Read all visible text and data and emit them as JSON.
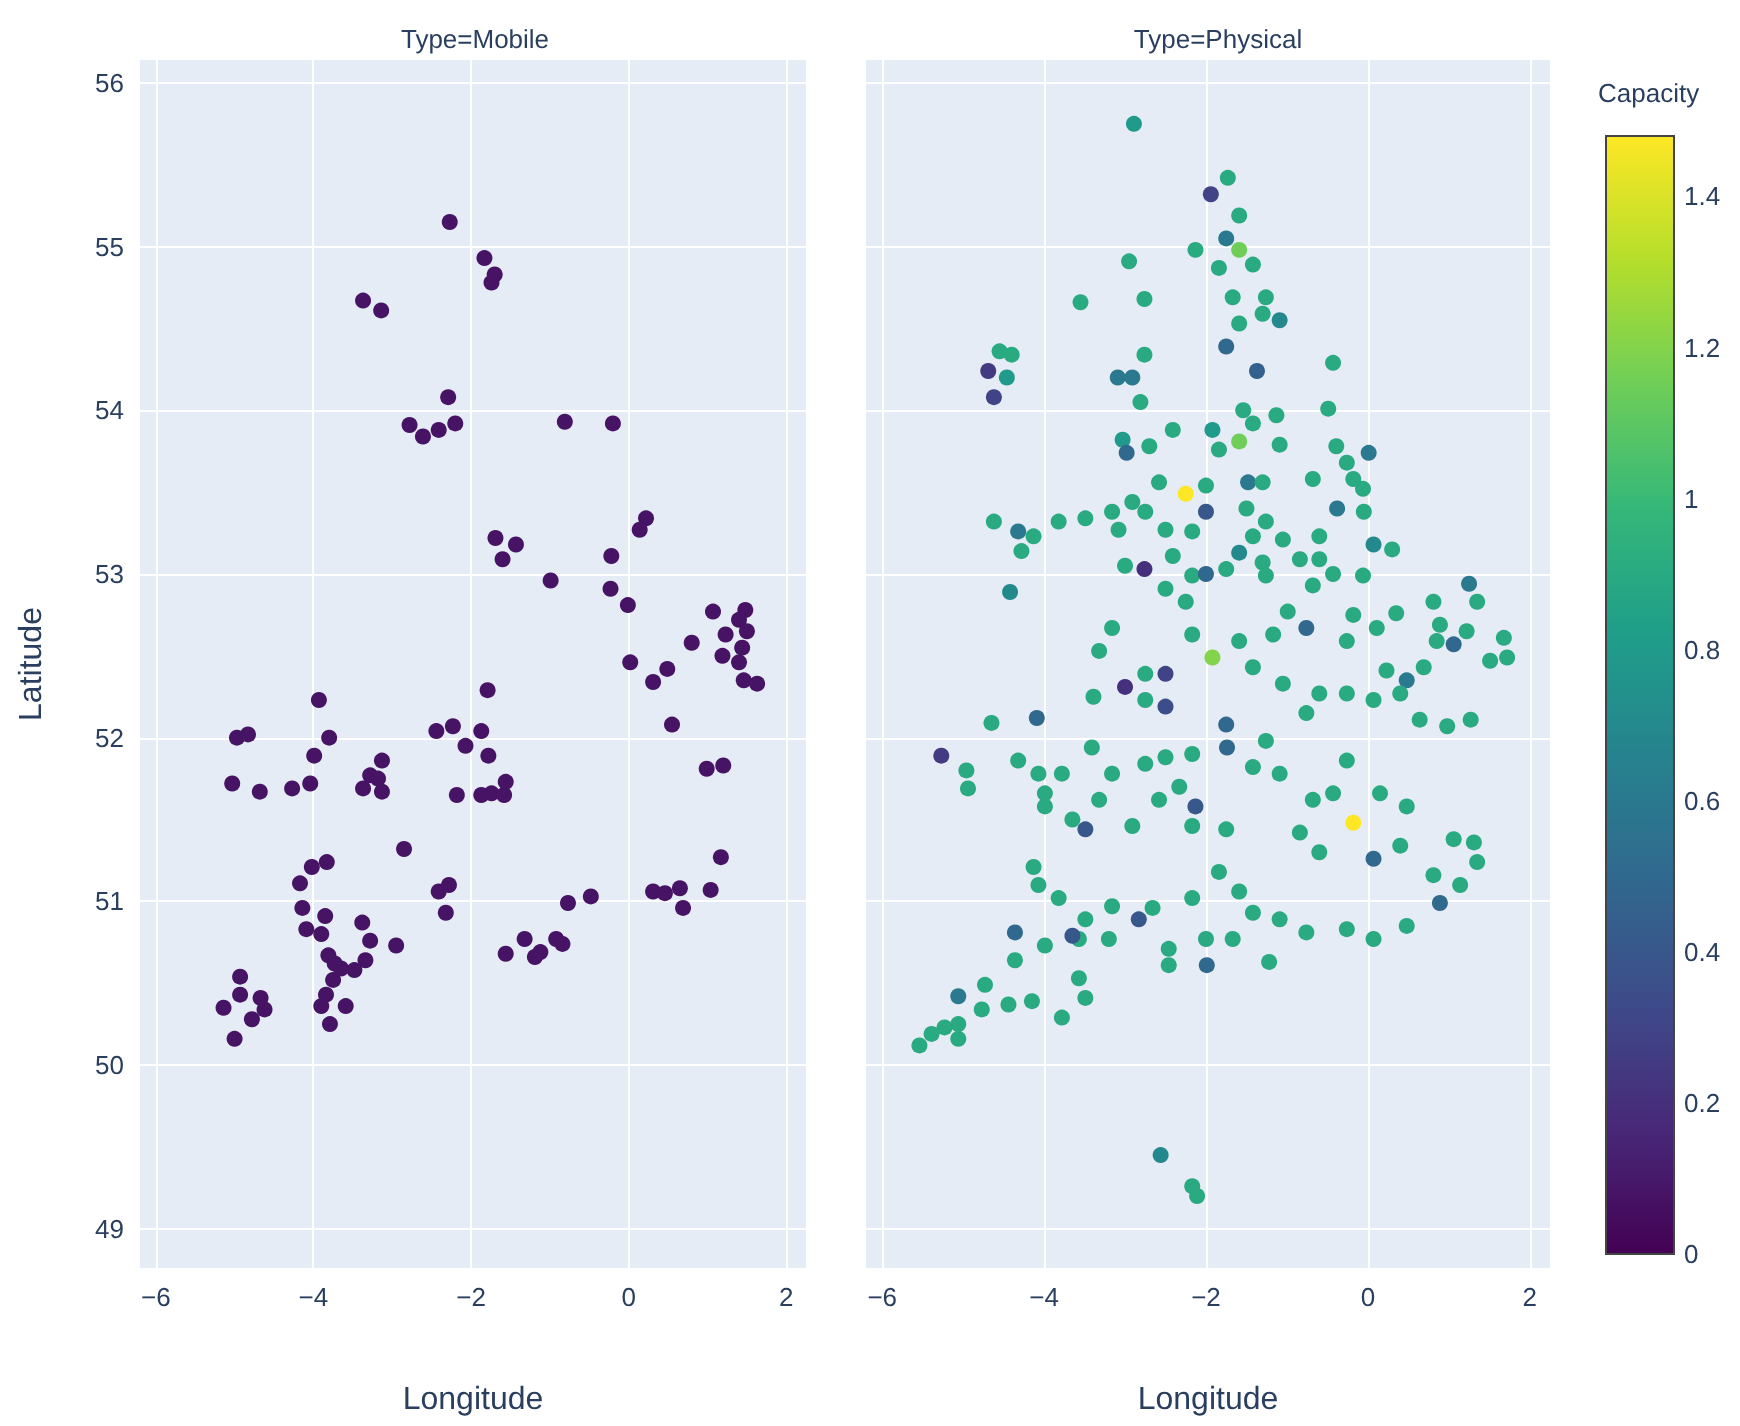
{
  "chart_data": [
    {
      "type": "scatter",
      "title": "Type=Mobile",
      "xlabel": "Longitude",
      "ylabel": "Latitude",
      "marker": "circle",
      "grid": true,
      "xlim": [
        -6.2,
        2.25
      ],
      "ylim": [
        48.76,
        56.14
      ],
      "xticks": [
        -6,
        -4,
        -2,
        0,
        2
      ],
      "yticks": [
        49,
        50,
        51,
        52,
        53,
        54,
        55,
        56
      ],
      "x": [
        -2.27,
        -1.83,
        -1.7,
        -1.74,
        -3.37,
        -3.14,
        -2.29,
        -2.78,
        -2.61,
        -2.41,
        -2.2,
        -0.81,
        -0.2,
        -1.69,
        -1.43,
        -1.6,
        -0.99,
        -0.22,
        -0.23,
        -0.01,
        0.22,
        0.14,
        1.07,
        1.48,
        1.23,
        1.4,
        1.5,
        0.8,
        1.19,
        1.4,
        1.44,
        0.02,
        0.49,
        0.31,
        1.46,
        1.63,
        0.55,
        -1.79,
        -3.93,
        -4.97,
        -4.83,
        -5.03,
        -4.68,
        -4.27,
        -4.04,
        -3.99,
        -3.8,
        -3.37,
        -3.28,
        -3.13,
        -3.13,
        -3.18,
        -2.85,
        -2.44,
        -2.23,
        -1.87,
        -2.07,
        -1.78,
        -2.18,
        -1.87,
        -1.74,
        -1.56,
        -1.58,
        0.99,
        1.2,
        1.17,
        1.04,
        0.31,
        0.46,
        0.65,
        0.69,
        -0.48,
        -0.77,
        -0.84,
        -0.92,
        -1.12,
        -1.19,
        -1.32,
        -1.56,
        -2.41,
        -2.28,
        -2.32,
        -4.02,
        -3.83,
        -4.17,
        -4.14,
        -3.85,
        -4.09,
        -3.9,
        -3.38,
        -3.28,
        -2.95,
        -3.81,
        -3.73,
        -3.65,
        -3.34,
        -3.48,
        -3.75,
        -3.84,
        -3.9,
        -3.59,
        -3.79,
        -4.93,
        -4.93,
        -5.14,
        -4.78,
        -4.67,
        -4.62,
        -5.0
      ],
      "values": [
        55.15,
        54.93,
        54.83,
        54.78,
        54.67,
        54.61,
        54.08,
        53.91,
        53.84,
        53.88,
        53.92,
        53.93,
        53.92,
        53.22,
        53.18,
        53.09,
        52.96,
        53.11,
        52.91,
        52.81,
        53.34,
        53.27,
        52.77,
        52.78,
        52.63,
        52.72,
        52.65,
        52.58,
        52.5,
        52.46,
        52.55,
        52.46,
        52.42,
        52.34,
        52.35,
        52.33,
        52.08,
        52.29,
        52.23,
        52.0,
        52.02,
        51.72,
        51.67,
        51.69,
        51.72,
        51.89,
        52.0,
        51.69,
        51.77,
        51.86,
        51.67,
        51.75,
        51.32,
        52.04,
        52.07,
        52.04,
        51.95,
        51.89,
        51.65,
        51.65,
        51.66,
        51.73,
        51.65,
        51.81,
        51.83,
        51.27,
        51.07,
        51.06,
        51.05,
        51.08,
        50.96,
        51.03,
        50.99,
        50.74,
        50.77,
        50.69,
        50.66,
        50.77,
        50.68,
        51.06,
        51.1,
        50.93,
        51.21,
        51.24,
        51.11,
        50.96,
        50.91,
        50.83,
        50.8,
        50.87,
        50.76,
        50.73,
        50.67,
        50.62,
        50.59,
        50.64,
        50.58,
        50.52,
        50.43,
        50.36,
        50.36,
        50.25,
        50.54,
        50.43,
        50.35,
        50.28,
        50.41,
        50.34,
        50.16
      ],
      "color": "#471365"
    },
    {
      "type": "scatter",
      "title": "Type=Physical",
      "xlabel": "Longitude",
      "marker": "circle",
      "grid": true,
      "tick_labels": "x",
      "clabel": "Capacity",
      "clim": [
        0,
        1.48
      ],
      "cticks": [
        0,
        0.2,
        0.4,
        0.6,
        0.8,
        1,
        1.2,
        1.4
      ],
      "xlim": [
        -6.2,
        2.25
      ],
      "ylim": [
        48.76,
        56.14
      ],
      "xticks": [
        -6,
        -4,
        -2,
        0,
        2
      ],
      "yticks": [
        49,
        50,
        51,
        52,
        53,
        54,
        55,
        56
      ],
      "x": [
        -2.89,
        -1.73,
        -1.94,
        -1.59,
        -2.13,
        -1.59,
        -1.75,
        -1.42,
        -1.84,
        -1.67,
        -1.26,
        -1.09,
        -1.59,
        -1.3,
        -2.95,
        -2.76,
        -3.55,
        -2.76,
        -1.75,
        -1.37,
        -0.43,
        -4.55,
        -4.4,
        -4.69,
        -4.46,
        -4.62,
        -3.09,
        -2.91,
        -2.81,
        -0.49,
        -1.54,
        -1.13,
        -1.59,
        -1.84,
        -1.42,
        -1.09,
        -1.92,
        -2.41,
        -3.03,
        -2.7,
        -2.98,
        -0.39,
        0.01,
        -0.26,
        -2.25,
        -2.58,
        -2.0,
        -2.91,
        -3.16,
        -2.75,
        -2.0,
        -3.08,
        -2.5,
        -2.17,
        -3.82,
        -3.49,
        -4.62,
        -4.32,
        -4.13,
        -4.28,
        -4.42,
        -1.48,
        -1.3,
        -1.5,
        -1.26,
        -1.05,
        -1.42,
        -1.59,
        -1.3,
        -1.26,
        -0.6,
        -0.68,
        -0.18,
        -0.06,
        -0.38,
        -0.05,
        0.07,
        0.3,
        -0.6,
        -2.76,
        -3.0,
        -2.41,
        -2.17,
        -2.25,
        -2.5,
        -2.0,
        -1.75,
        -0.84,
        -0.43,
        -0.06,
        1.25,
        0.81,
        1.35,
        1.68,
        1.72,
        1.51,
        1.06,
        1.22,
        0.89,
        0.35,
        0.11,
        -0.18,
        -0.68,
        -0.99,
        -0.76,
        -0.26,
        0.23,
        0.69,
        0.48,
        -1.92,
        -2.17,
        -1.59,
        -1.17,
        -1.42,
        -2.75,
        -2.5,
        -3.16,
        -3.32,
        -3.0,
        -3.39,
        -2.75,
        -2.5,
        -4.65,
        -4.09,
        -5.27,
        -4.96,
        -4.94,
        -4.32,
        -4.07,
        -3.78,
        -3.99,
        -3.99,
        -3.41,
        -3.16,
        -3.32,
        -3.49,
        -3.65,
        -2.91,
        -2.58,
        -2.33,
        -2.17,
        -2.75,
        -2.5,
        -1.75,
        -1.74,
        -2.13,
        -2.17,
        -1.75,
        -1.42,
        -1.09,
        -1.26,
        -0.76,
        -1.05,
        -0.6,
        -0.26,
        0.07,
        0.4,
        0.64,
        0.98,
        1.27,
        0.85,
        -0.26,
        -0.18,
        -0.68,
        -0.43,
        0.15,
        0.48,
        -0.84,
        -0.6,
        0.07,
        0.4,
        0.81,
        1.06,
        1.31,
        1.35,
        1.14,
        0.89,
        0.48,
        0.07,
        -0.26,
        -0.76,
        -1.09,
        -1.42,
        -1.22,
        -1.67,
        -2.0,
        -1.99,
        -2.46,
        -2.46,
        -2.17,
        -1.59,
        -1.84,
        -2.66,
        -2.83,
        -3.2,
        -3.57,
        -3.65,
        -3.16,
        -3.49,
        -3.82,
        -4.07,
        -4.13,
        -4.36,
        -4.36,
        -3.99,
        -3.57,
        -3.49,
        -3.78,
        -4.15,
        -4.44,
        -4.77,
        -4.73,
        -5.06,
        -5.06,
        -5.23,
        -5.39,
        -5.54,
        -5.06,
        -2.56,
        -2.17,
        -2.11
      ],
      "values": [
        55.75,
        55.42,
        55.32,
        54.98,
        54.98,
        55.19,
        55.05,
        54.89,
        54.87,
        54.69,
        54.69,
        54.55,
        54.53,
        54.59,
        54.91,
        54.68,
        54.66,
        54.34,
        54.39,
        54.24,
        54.29,
        54.36,
        54.34,
        54.24,
        54.2,
        54.08,
        54.2,
        54.2,
        54.05,
        54.01,
        54.0,
        53.97,
        53.81,
        53.76,
        53.92,
        53.79,
        53.88,
        53.88,
        53.82,
        53.78,
        53.74,
        53.78,
        53.74,
        53.68,
        53.49,
        53.56,
        53.54,
        53.44,
        53.38,
        53.38,
        53.38,
        53.27,
        53.27,
        53.26,
        53.32,
        53.34,
        53.32,
        53.26,
        53.23,
        53.14,
        52.89,
        53.56,
        53.56,
        53.4,
        53.32,
        53.21,
        53.23,
        53.13,
        53.07,
        52.99,
        53.23,
        53.58,
        53.58,
        53.52,
        53.4,
        53.38,
        53.18,
        53.15,
        53.09,
        53.03,
        53.05,
        53.11,
        52.99,
        52.83,
        52.91,
        53.0,
        53.03,
        53.09,
        53.0,
        52.99,
        52.94,
        52.83,
        52.83,
        52.61,
        52.49,
        52.47,
        52.57,
        52.65,
        52.69,
        52.76,
        52.67,
        52.75,
        52.93,
        52.77,
        52.67,
        52.59,
        52.41,
        52.43,
        52.35,
        52.49,
        52.63,
        52.59,
        52.63,
        52.43,
        52.39,
        52.39,
        52.67,
        52.53,
        52.31,
        52.25,
        52.23,
        52.19,
        52.09,
        52.12,
        51.89,
        51.8,
        51.69,
        51.86,
        51.78,
        51.78,
        51.66,
        51.58,
        51.94,
        51.78,
        51.62,
        51.44,
        51.5,
        51.46,
        51.62,
        51.7,
        51.9,
        51.84,
        51.88,
        52.08,
        51.94,
        51.58,
        51.46,
        51.44,
        51.82,
        51.78,
        51.98,
        52.15,
        52.33,
        52.27,
        52.27,
        52.23,
        52.27,
        52.11,
        52.07,
        52.11,
        52.59,
        51.86,
        51.48,
        51.62,
        51.66,
        51.66,
        51.58,
        51.42,
        51.3,
        51.26,
        51.34,
        51.16,
        51.38,
        51.36,
        51.24,
        51.1,
        50.99,
        50.85,
        50.77,
        50.83,
        50.81,
        50.89,
        50.93,
        50.63,
        50.77,
        50.77,
        50.61,
        50.61,
        50.71,
        51.02,
        51.06,
        51.18,
        50.96,
        50.89,
        50.77,
        50.77,
        50.79,
        50.97,
        50.89,
        51.02,
        51.1,
        51.21,
        50.81,
        50.64,
        50.73,
        50.53,
        50.41,
        50.29,
        50.39,
        50.37,
        50.34,
        50.49,
        50.42,
        50.25,
        50.23,
        50.19,
        50.12,
        50.16,
        49.45,
        49.26,
        49.2
      ],
      "cvalues": [
        0.8,
        0.9,
        0.3,
        1.15,
        0.9,
        0.9,
        0.6,
        0.9,
        0.9,
        0.9,
        0.9,
        0.7,
        0.9,
        0.9,
        0.9,
        0.9,
        0.9,
        0.9,
        0.5,
        0.45,
        0.9,
        0.9,
        0.9,
        0.25,
        0.8,
        0.3,
        0.6,
        0.6,
        0.9,
        0.9,
        0.9,
        0.9,
        1.15,
        0.9,
        0.9,
        0.9,
        0.8,
        0.9,
        0.8,
        0.9,
        0.5,
        0.9,
        0.6,
        0.9,
        1.48,
        0.9,
        0.9,
        0.9,
        0.9,
        0.9,
        0.4,
        0.9,
        0.9,
        0.9,
        0.9,
        0.9,
        0.9,
        0.6,
        0.9,
        0.9,
        0.7,
        0.6,
        0.9,
        0.9,
        0.9,
        0.9,
        0.9,
        0.7,
        0.9,
        0.9,
        0.9,
        0.9,
        0.9,
        0.9,
        0.6,
        0.9,
        0.7,
        0.9,
        0.9,
        0.2,
        0.9,
        0.9,
        0.9,
        0.9,
        0.9,
        0.5,
        0.9,
        0.9,
        0.9,
        0.9,
        0.6,
        0.9,
        0.9,
        0.9,
        0.9,
        0.9,
        0.5,
        0.9,
        0.9,
        0.9,
        0.9,
        0.9,
        0.9,
        0.9,
        0.5,
        0.9,
        0.9,
        0.9,
        0.6,
        1.2,
        0.9,
        0.9,
        0.9,
        0.9,
        0.9,
        0.3,
        0.9,
        0.9,
        0.2,
        0.9,
        0.9,
        0.35,
        0.9,
        0.5,
        0.25,
        0.9,
        0.9,
        0.9,
        0.9,
        0.9,
        0.9,
        0.9,
        0.9,
        0.9,
        0.9,
        0.4,
        0.9,
        0.9,
        0.9,
        0.9,
        0.9,
        0.9,
        0.9,
        0.5,
        0.5,
        0.4,
        0.9,
        0.9,
        0.9,
        0.9,
        0.9,
        0.9,
        0.9,
        0.9,
        0.9,
        0.9,
        0.9,
        0.9,
        0.9,
        0.9,
        0.9,
        0.9,
        1.48,
        0.9,
        0.9,
        0.9,
        0.9,
        0.9,
        0.9,
        0.5,
        0.9,
        0.9,
        0.9,
        0.9,
        0.9,
        0.9,
        0.5,
        0.9,
        0.9,
        0.9,
        0.9,
        0.9,
        0.9,
        0.9,
        0.9,
        0.9,
        0.5,
        0.9,
        0.9,
        0.9,
        0.9,
        0.9,
        0.9,
        0.4,
        0.9,
        0.9,
        0.4,
        0.9,
        0.9,
        0.9,
        0.9,
        0.9,
        0.5,
        0.9,
        0.9,
        0.9,
        0.9,
        0.9,
        0.9,
        0.9,
        0.9,
        0.9,
        0.6,
        0.9,
        0.9,
        0.9,
        0.9,
        0.9,
        0.7,
        0.9,
        0.9
      ]
    }
  ]
}
